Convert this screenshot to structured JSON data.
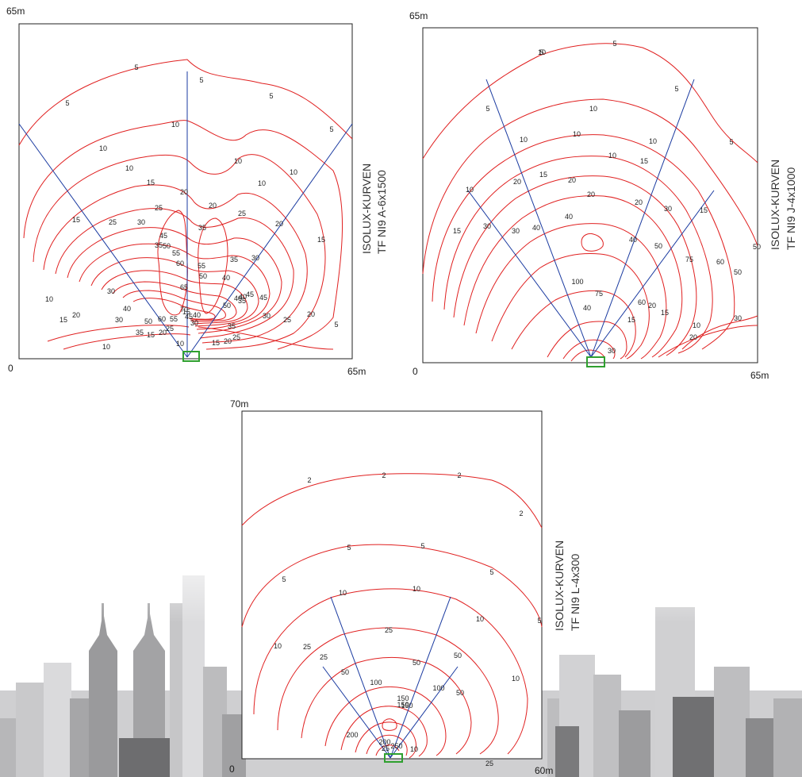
{
  "diagrams": [
    {
      "id": "a",
      "y_max_label": "65m",
      "origin_label": "0",
      "x_max_label": "65m",
      "side_line1": "ISOLUX-KURVEN",
      "side_line2": "TF NI9 A-6x1500",
      "contour_labels": [
        "5",
        "5",
        "5",
        "5",
        "5",
        "10",
        "10",
        "10",
        "10",
        "10",
        "10",
        "15",
        "15",
        "15",
        "20",
        "20",
        "20",
        "25",
        "25",
        "25",
        "30",
        "30",
        "30",
        "35",
        "35",
        "35",
        "40",
        "40",
        "45",
        "45",
        "50",
        "50",
        "50",
        "55",
        "55",
        "60",
        "65",
        "70",
        "10",
        "15",
        "20",
        "25",
        "30",
        "35",
        "40",
        "50",
        "60",
        "55",
        "45",
        "40",
        "30",
        "35",
        "25",
        "20",
        "15",
        "10",
        "15",
        "20",
        "25",
        "30",
        "35",
        "10",
        "15",
        "20",
        "40",
        "45",
        "5"
      ],
      "color_line": "#e02020",
      "color_beam": "#1a3aa0",
      "color_luminaire": "#2fa02f"
    },
    {
      "id": "j",
      "y_max_label": "65m",
      "origin_label": "0",
      "x_max_label": "65m",
      "side_line1": "ISOLUX-KURVEN",
      "side_line2": "TF NI9 J-4x1000",
      "contour_labels": [
        "5",
        "5",
        "5",
        "5",
        "5",
        "10",
        "10",
        "10",
        "10",
        "10",
        "10",
        "15",
        "15",
        "15",
        "15",
        "20",
        "20",
        "20",
        "20",
        "30",
        "30",
        "30",
        "40",
        "40",
        "40",
        "50",
        "50",
        "50",
        "60",
        "75",
        "100",
        "75",
        "40",
        "30",
        "20",
        "15",
        "10",
        "20",
        "30",
        "60",
        "15",
        "10"
      ],
      "color_line": "#e02020",
      "color_beam": "#1a3aa0",
      "color_luminaire": "#2fa02f"
    },
    {
      "id": "l",
      "y_max_label": "70m",
      "origin_label": "0",
      "x_max_label": "60m",
      "side_line1": "ISOLUX-KURVEN",
      "side_line2": "TF NI9 L-4x300",
      "contour_labels": [
        "2",
        "2",
        "2",
        "2",
        "5",
        "5",
        "5",
        "5",
        "5",
        "10",
        "10",
        "10",
        "10",
        "10",
        "25",
        "25",
        "25",
        "25",
        "50",
        "50",
        "50",
        "50",
        "100",
        "100",
        "150",
        "150",
        "150",
        "200",
        "200",
        "250",
        "25",
        "10"
      ],
      "color_line": "#e02020",
      "color_beam": "#1a3aa0",
      "color_luminaire": "#2fa02f"
    }
  ],
  "background": {
    "skyline_colors": [
      "#d8d8da",
      "#c4c4c6",
      "#a9a9ab",
      "#8f8f91",
      "#6f6f71"
    ]
  }
}
